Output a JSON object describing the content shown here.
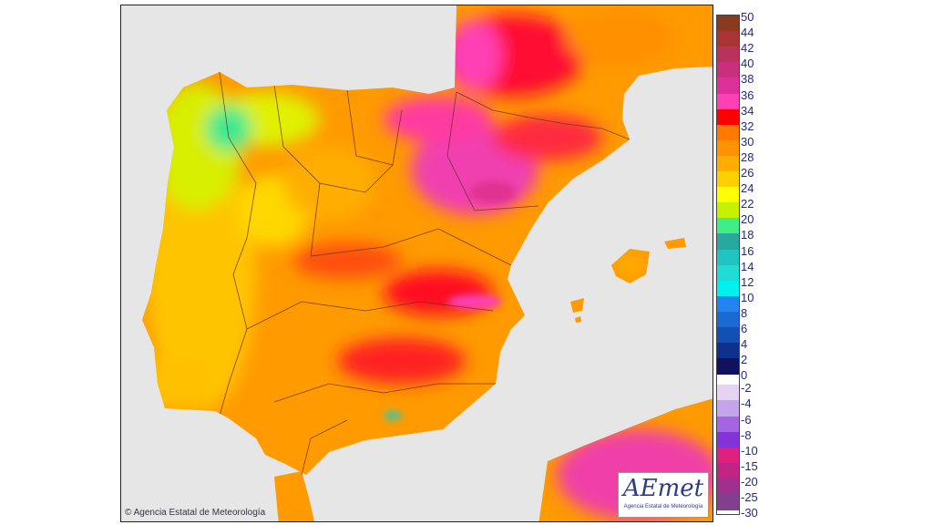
{
  "map": {
    "credit": "© Agencia Estatal de Meteorología",
    "logo_text": "AEmet",
    "logo_subtitle": "Agencia Estatal de Meteorología",
    "sea_color": "#e6e6e6"
  },
  "legend": {
    "labels": [
      "50",
      "44",
      "42",
      "40",
      "38",
      "36",
      "34",
      "32",
      "30",
      "28",
      "26",
      "24",
      "22",
      "20",
      "18",
      "16",
      "14",
      "12",
      "10",
      "8",
      "6",
      "4",
      "2",
      "0",
      "-2",
      "-4",
      "-6",
      "-8",
      "-10",
      "-15",
      "-20",
      "-25",
      "-30"
    ],
    "colors_positive": [
      "#8a3a1e",
      "#a83434",
      "#b8325c",
      "#c8307e",
      "#de309a",
      "#ff40b4",
      "#ff0000",
      "#ff7800",
      "#ff9200",
      "#ffae00",
      "#ffd000",
      "#ffff00",
      "#c6f200",
      "#40ee86",
      "#2aa8a0",
      "#20c4c0",
      "#20dcd4",
      "#00f0f0",
      "#2284f0",
      "#1a6ad2",
      "#1250b2",
      "#10308e",
      "#10125e"
    ],
    "colors_negative": [
      "#e4d4f2",
      "#c4a4ea",
      "#a466e0",
      "#8234d8",
      "#e0207e",
      "#c02484",
      "#a0308e",
      "#80408e"
    ]
  }
}
